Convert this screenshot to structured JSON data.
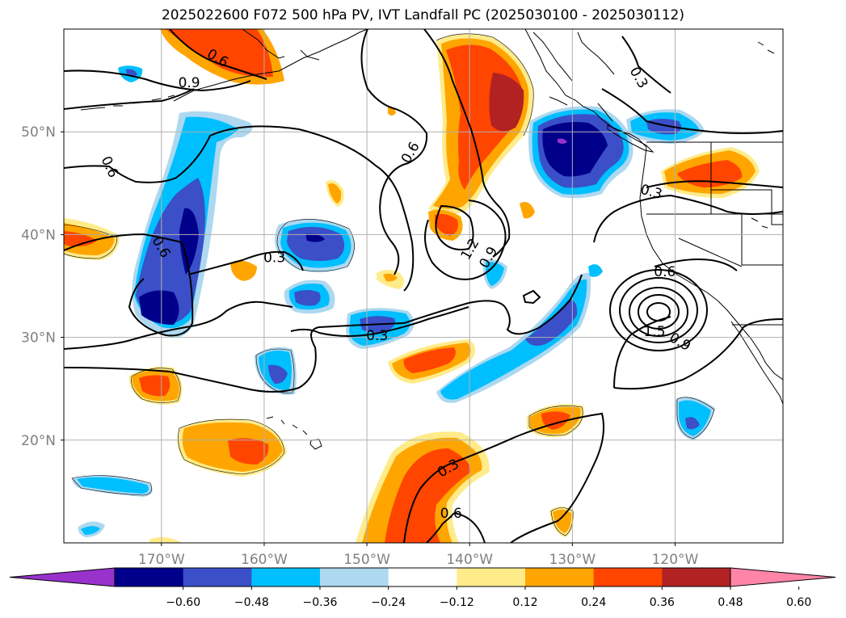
{
  "title": "2025022600 F072 500 hPa PV, IVT Landfall PC (2025030100 - 2025030112)",
  "axes": {
    "lat_labels": [
      {
        "lat": 50,
        "label": "50°N"
      },
      {
        "lat": 40,
        "label": "40°N"
      },
      {
        "lat": 30,
        "label": "30°N"
      },
      {
        "lat": 20,
        "label": "20°N"
      }
    ],
    "lon_labels": [
      {
        "lon": -170,
        "label": "170°W"
      },
      {
        "lon": -160,
        "label": "160°W"
      },
      {
        "lon": -150,
        "label": "150°W"
      },
      {
        "lon": -140,
        "label": "140°W"
      },
      {
        "lon": -130,
        "label": "130°W"
      },
      {
        "lon": -120,
        "label": "120°W"
      }
    ],
    "label_color": "#808080"
  },
  "colorbar": {
    "colors": [
      "#9932cc",
      "#00008b",
      "#3a4fc8",
      "#00bfff",
      "#add8f0",
      "#ffffff",
      "#ffeb8a",
      "#ffa500",
      "#ff4500",
      "#b22222",
      "#ff85a8"
    ],
    "tick_labels": [
      "−0.60",
      "−0.48",
      "−0.36",
      "−0.24",
      "−0.12",
      "0.12",
      "0.24",
      "0.36",
      "0.48",
      "0.60"
    ]
  },
  "contour_labels": [
    {
      "text": "0.6",
      "lon": -164.5,
      "lat": 57.2,
      "angle": 30
    },
    {
      "text": "0.9",
      "lon": -167.3,
      "lat": 54.8,
      "angle": 0
    },
    {
      "text": "0.3",
      "lon": -123.5,
      "lat": 55.3,
      "angle": 60
    },
    {
      "text": "0.6",
      "lon": -175.0,
      "lat": 46.6,
      "angle": 65
    },
    {
      "text": "0.6",
      "lon": -145.8,
      "lat": 48.0,
      "angle": -60
    },
    {
      "text": "0.3",
      "lon": -122.3,
      "lat": 44.2,
      "angle": 15
    },
    {
      "text": "0.6",
      "lon": -170.0,
      "lat": 38.8,
      "angle": 60
    },
    {
      "text": "0.3",
      "lon": -159.0,
      "lat": 37.8,
      "angle": 0
    },
    {
      "text": "1.2",
      "lon": -140.0,
      "lat": 38.6,
      "angle": -60
    },
    {
      "text": "0.9",
      "lon": -138.2,
      "lat": 37.8,
      "angle": -60
    },
    {
      "text": "0.6",
      "lon": -121.0,
      "lat": 36.4,
      "angle": 0
    },
    {
      "text": "0.3",
      "lon": -149.0,
      "lat": 30.2,
      "angle": 0
    },
    {
      "text": "1.5",
      "lon": -122.0,
      "lat": 30.6,
      "angle": 0
    },
    {
      "text": "0.9",
      "lon": -119.5,
      "lat": 29.6,
      "angle": 30
    },
    {
      "text": "0.3",
      "lon": -142.1,
      "lat": 17.3,
      "angle": -30
    },
    {
      "text": "0.6",
      "lon": -141.8,
      "lat": 12.9,
      "angle": 0
    }
  ]
}
